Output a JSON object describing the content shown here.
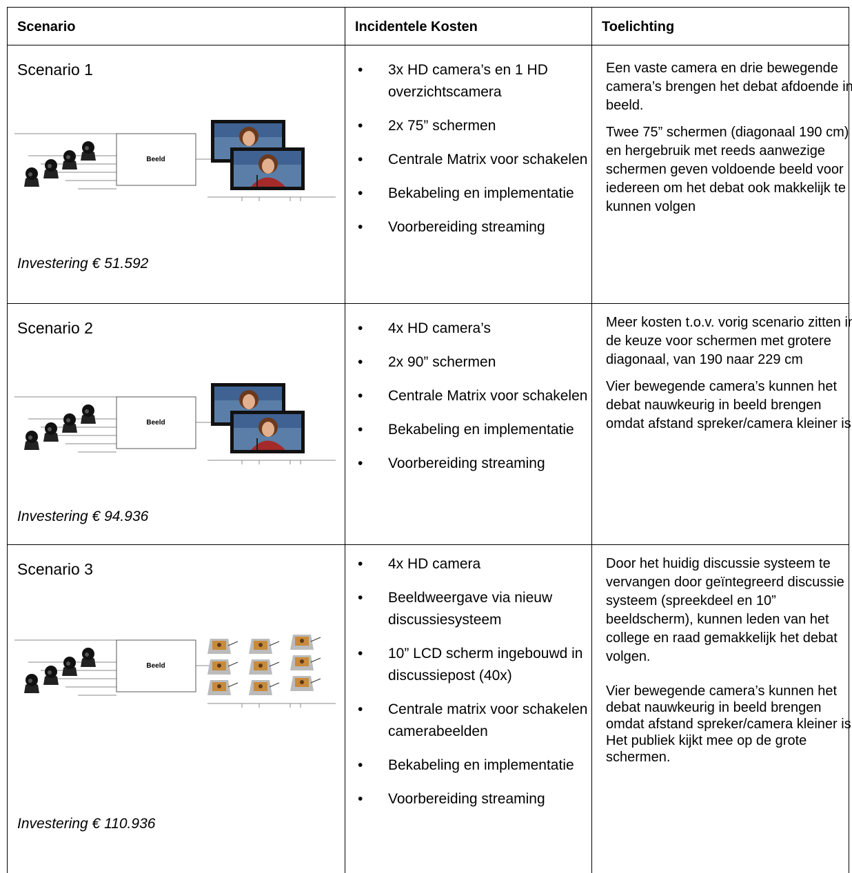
{
  "table": {
    "header": [
      "Scenario",
      "Incidentele Kosten",
      "Toelichting"
    ],
    "rows": [
      {
        "scenario": "Scenario 1",
        "diagram_label": "Beeld",
        "investment": "Investering € 51.592",
        "costs": [
          "3x HD camera’s en 1 HD overzichtscamera",
          "2x 75” schermen",
          "Centrale Matrix voor schakelen",
          "Bekabeling en implementatie",
          "Voorbereiding streaming"
        ],
        "notes": [
          "Een vaste camera en drie bewegende camera’s brengen het debat afdoende in beeld.",
          "Twee 75” schermen (diagonaal 190 cm)  en hergebruik met reeds aanwezige schermen geven voldoende beeld voor iedereen om het debat ook makkelijk te kunnen volgen"
        ]
      },
      {
        "scenario": "Scenario 2",
        "diagram_label": "Beeld",
        "investment": "Investering € 94.936",
        "costs": [
          "4x HD camera’s",
          "2x 90” schermen",
          "Centrale Matrix voor schakelen",
          "Bekabeling en implementatie",
          "Voorbereiding streaming"
        ],
        "notes": [
          "Meer kosten t.o.v. vorig scenario zitten in de keuze voor schermen met grotere  diagonaal, van 190 naar  229 cm",
          "Vier bewegende camera’s kunnen het debat nauwkeurig in beeld brengen omdat afstand spreker/camera kleiner is."
        ]
      },
      {
        "scenario": "Scenario 3",
        "diagram_label": "Beeld",
        "investment": "Investering € 110.936",
        "costs": [
          "4x HD camera",
          "Beeldweergave via nieuw discussiesysteem",
          "10” LCD scherm ingebouwd in discussiepost (40x)",
          "Centrale matrix voor schakelen camerabeelden",
          "Bekabeling en implementatie",
          "Voorbereiding streaming"
        ],
        "notes": [
          "Door het huidig discussie systeem te vervangen door geïntegreerd discussie systeem (spreekdeel en 10” beeldscherm), kunnen leden van het college en raad gemakkelijk het debat volgen.",
          "Vier bewegende camera’s kunnen het debat nauwkeurig in beeld brengen omdat afstand spreker/camera kleiner is. Het publiek kijkt mee op de grote schermen."
        ]
      }
    ]
  }
}
